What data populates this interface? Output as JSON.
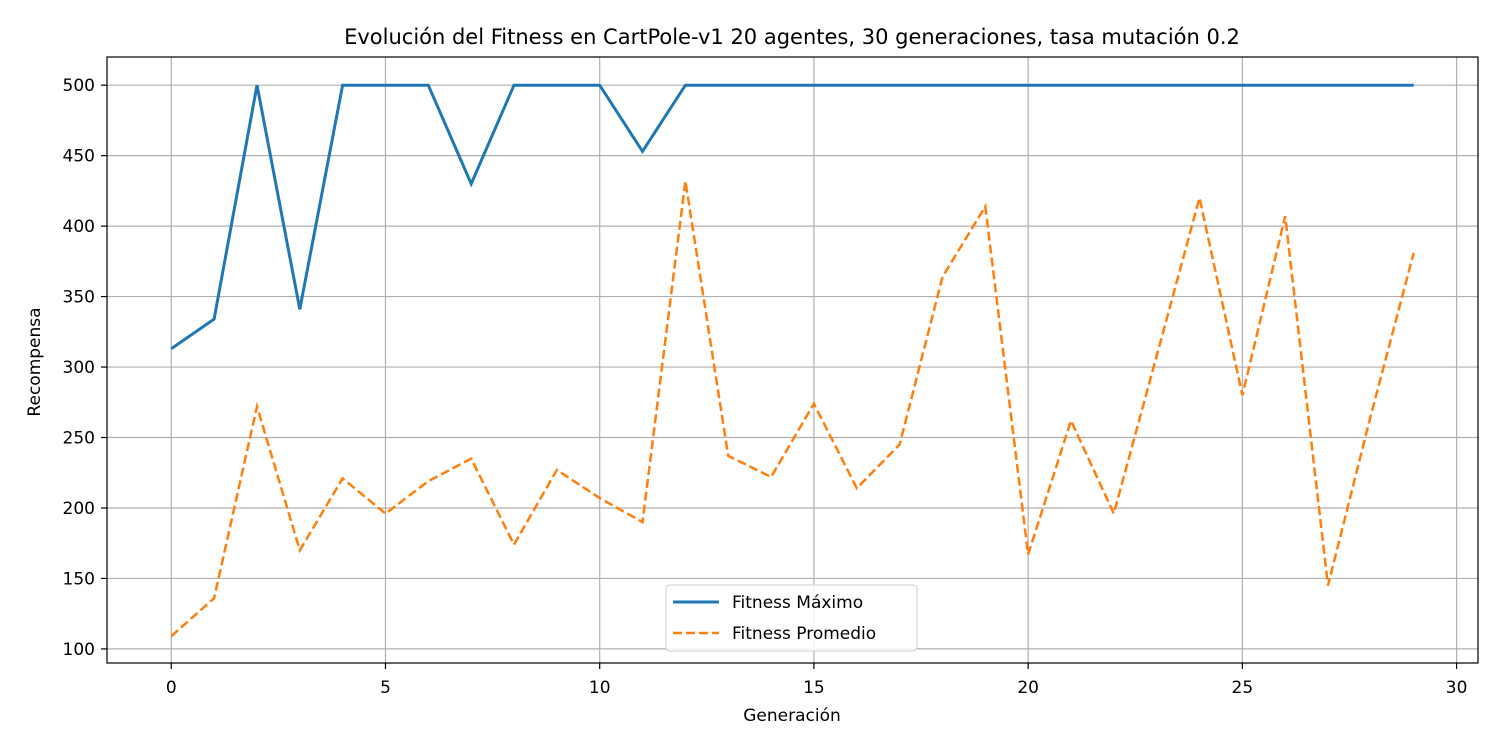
{
  "chart_data": {
    "type": "line",
    "title": "Evolución del Fitness en CartPole-v1 20 agentes, 30 generaciones, tasa mutación 0.2",
    "xlabel": "Generación",
    "ylabel": "Recompensa",
    "xlim": [
      -1.5,
      30.5
    ],
    "ylim": [
      90,
      520
    ],
    "xticks": [
      0,
      5,
      10,
      15,
      20,
      25,
      30
    ],
    "yticks": [
      100,
      150,
      200,
      250,
      300,
      350,
      400,
      450,
      500
    ],
    "grid": true,
    "legend_position": "bottom-center",
    "x": [
      0,
      1,
      2,
      3,
      4,
      5,
      6,
      7,
      8,
      9,
      10,
      11,
      12,
      13,
      14,
      15,
      16,
      17,
      18,
      19,
      20,
      21,
      22,
      23,
      24,
      25,
      26,
      27,
      28,
      29
    ],
    "series": [
      {
        "name": "Fitness Máximo",
        "color": "#1f77b4",
        "style": "solid",
        "values": [
          313,
          334,
          500,
          341,
          500,
          500,
          500,
          430,
          500,
          500,
          500,
          453,
          500,
          500,
          500,
          500,
          500,
          500,
          500,
          500,
          500,
          500,
          500,
          500,
          500,
          500,
          500,
          500,
          500,
          500
        ]
      },
      {
        "name": "Fitness Promedio",
        "color": "#ff7f0e",
        "style": "dashed",
        "values": [
          109,
          136,
          272,
          170,
          221,
          196,
          219,
          235,
          174,
          227,
          207,
          190,
          432,
          237,
          222,
          274,
          214,
          245,
          364,
          414,
          167,
          262,
          196,
          308,
          420,
          280,
          407,
          145,
          266,
          381
        ]
      }
    ]
  }
}
